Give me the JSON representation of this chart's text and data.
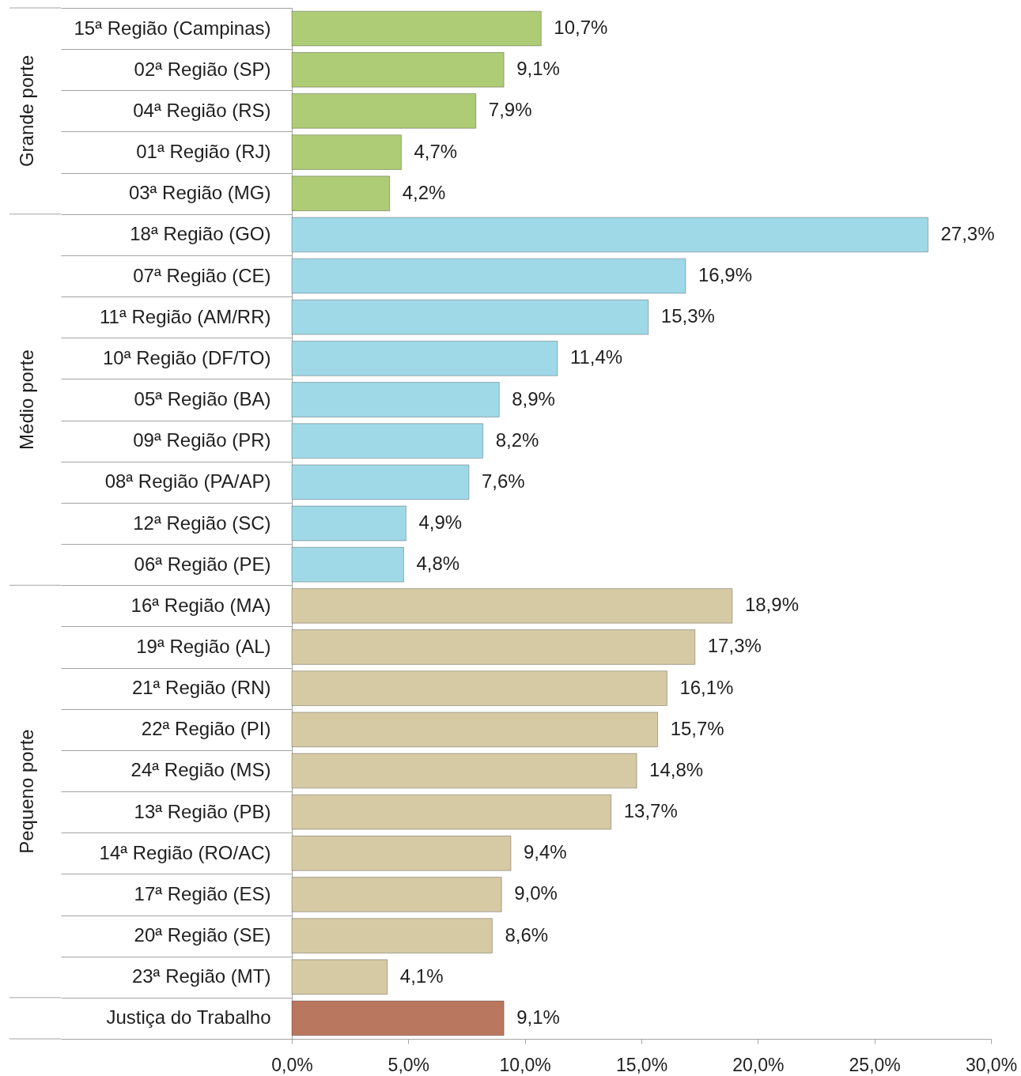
{
  "chart_data": {
    "type": "bar",
    "orientation": "horizontal",
    "categories": [
      "15ª Região (Campinas)",
      "02ª Região (SP)",
      "04ª Região (RS)",
      "01ª Região (RJ)",
      "03ª Região (MG)",
      "18ª Região (GO)",
      "07ª Região (CE)",
      "11ª Região (AM/RR)",
      "10ª Região (DF/TO)",
      "05ª Região (BA)",
      "09ª Região (PR)",
      "08ª Região (PA/AP)",
      "12ª Região (SC)",
      "06ª Região (PE)",
      "16ª Região (MA)",
      "19ª Região (AL)",
      "21ª Região (RN)",
      "22ª Região (PI)",
      "24ª Região (MS)",
      "13ª Região (PB)",
      "14ª Região (RO/AC)",
      "17ª Região (ES)",
      "20ª Região (SE)",
      "23ª Região (MT)",
      "Justiça do Trabalho"
    ],
    "series": [
      {
        "name": "Grande porte",
        "color": "#aecb76",
        "values": [
          10.7,
          9.1,
          7.9,
          4.7,
          4.2,
          null,
          null,
          null,
          null,
          null,
          null,
          null,
          null,
          null,
          null,
          null,
          null,
          null,
          null,
          null,
          null,
          null,
          null,
          null,
          null
        ],
        "value_labels": [
          "10,7%",
          "9,1%",
          "7,9%",
          "4,7%",
          "4,2%",
          null,
          null,
          null,
          null,
          null,
          null,
          null,
          null,
          null,
          null,
          null,
          null,
          null,
          null,
          null,
          null,
          null,
          null,
          null,
          null
        ]
      },
      {
        "name": "Médio porte",
        "color": "#9fd9e8",
        "values": [
          null,
          null,
          null,
          null,
          null,
          27.3,
          16.9,
          15.3,
          11.4,
          8.9,
          8.2,
          7.6,
          4.9,
          4.8,
          null,
          null,
          null,
          null,
          null,
          null,
          null,
          null,
          null,
          null,
          null
        ],
        "value_labels": [
          null,
          null,
          null,
          null,
          null,
          "27,3%",
          "16,9%",
          "15,3%",
          "11,4%",
          "8,9%",
          "8,2%",
          "7,6%",
          "4,9%",
          "4,8%",
          null,
          null,
          null,
          null,
          null,
          null,
          null,
          null,
          null,
          null,
          null
        ]
      },
      {
        "name": "Pequeno porte",
        "color": "#d5caa4",
        "values": [
          null,
          null,
          null,
          null,
          null,
          null,
          null,
          null,
          null,
          null,
          null,
          null,
          null,
          null,
          18.9,
          17.3,
          16.1,
          15.7,
          14.8,
          13.7,
          9.4,
          9.0,
          8.6,
          4.1,
          null
        ],
        "value_labels": [
          null,
          null,
          null,
          null,
          null,
          null,
          null,
          null,
          null,
          null,
          null,
          null,
          null,
          null,
          "18,9%",
          "17,3%",
          "16,1%",
          "15,7%",
          "14,8%",
          "13,7%",
          "9,4%",
          "9,0%",
          "8,6%",
          "4,1%",
          null
        ]
      },
      {
        "color": "#b9775f",
        "values": [
          null,
          null,
          null,
          null,
          null,
          null,
          null,
          null,
          null,
          null,
          null,
          null,
          null,
          null,
          null,
          null,
          null,
          null,
          null,
          null,
          null,
          null,
          null,
          null,
          9.1
        ],
        "value_labels": [
          null,
          null,
          null,
          null,
          null,
          null,
          null,
          null,
          null,
          null,
          null,
          null,
          null,
          null,
          null,
          null,
          null,
          null,
          null,
          null,
          null,
          null,
          null,
          null,
          "9,1%"
        ]
      }
    ],
    "xlim": [
      0,
      30
    ],
    "xticks": [
      {
        "value": 0,
        "label": "0,0%"
      },
      {
        "value": 5,
        "label": "5,0%"
      },
      {
        "value": 10,
        "label": "10,0%"
      },
      {
        "value": 15,
        "label": "15,0%"
      },
      {
        "value": 20,
        "label": "20,0%"
      },
      {
        "value": 25,
        "label": "25,0%"
      },
      {
        "value": 30,
        "label": "30,0%"
      }
    ]
  }
}
